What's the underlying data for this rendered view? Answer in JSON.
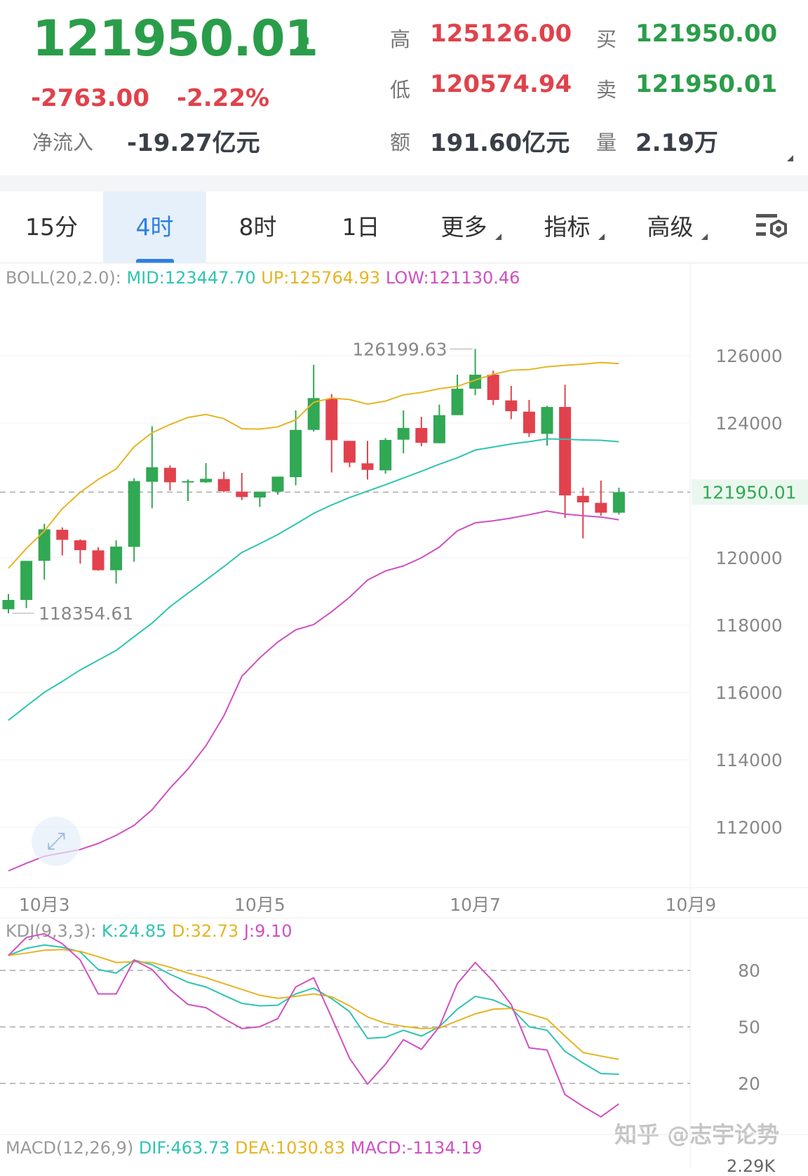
{
  "header": {
    "last_price": "121950.01",
    "trend_icon": "arrow-up-right-icon",
    "change": "-2763.00",
    "change_pct": "-2.22%",
    "net_inflow_label": "净流入",
    "net_inflow_value": "-19.27亿元",
    "stats": [
      {
        "label": "高",
        "value": "125126.00",
        "color": "red"
      },
      {
        "label": "买",
        "value": "121950.00",
        "color": "green"
      },
      {
        "label": "低",
        "value": "120574.94",
        "color": "red"
      },
      {
        "label": "卖",
        "value": "121950.01",
        "color": "green"
      },
      {
        "label": "额",
        "value": "191.60亿元",
        "color": "dark"
      },
      {
        "label": "量",
        "value": "2.19万",
        "color": "dark"
      }
    ]
  },
  "tabs": [
    {
      "label": "15分"
    },
    {
      "label": "4时",
      "selected": true
    },
    {
      "label": "8时"
    },
    {
      "label": "1日"
    },
    {
      "label": "更多",
      "dropdown": true
    },
    {
      "label": "指标",
      "dropdown": true
    },
    {
      "label": "高级",
      "dropdown": true
    }
  ],
  "settings_icon": "chart-settings-icon",
  "colors": {
    "up": "#31a853",
    "down": "#e2424d",
    "mid": "#2ec4b0",
    "upper": "#e6b422",
    "lower": "#d04fc2"
  },
  "boll_legend": {
    "name": "BOLL(20,2.0):",
    "mid": "MID:123447.70",
    "up": "UP:125764.93",
    "low": "LOW:121130.46"
  },
  "kdj_legend": {
    "name": "KDJ(9,3,3):",
    "k": "K:24.85",
    "d": "D:32.73",
    "j": "J:9.10"
  },
  "macd_legend": {
    "name": "MACD(12,26,9)",
    "dif": "DIF:463.73",
    "dea": "DEA:1030.83",
    "macd": "MACD:-1134.19"
  },
  "macd_axis_label": "2.29K",
  "watermark": "知乎 @志宇论势",
  "chart_data": [
    {
      "type": "candlestick",
      "interval": "4时",
      "yticks": [
        112000,
        114000,
        116000,
        118000,
        120000,
        124000,
        126000
      ],
      "ylim": [
        110500,
        127000
      ],
      "xticks": [
        {
          "label": "10月3",
          "index": 2
        },
        {
          "label": "10月5",
          "index": 14
        },
        {
          "label": "10月7",
          "index": 26
        },
        {
          "label": "10月9",
          "index": 38
        }
      ],
      "current_price_label": "121950.01",
      "current_price": 121950.01,
      "max_label": "126199.63",
      "max_index": 26,
      "min_label": "118354.61",
      "min_index": 0,
      "open": [
        118473,
        118750,
        119910,
        120833,
        120521,
        120222,
        119632,
        120326,
        122257,
        122674,
        122243,
        122243,
        122340,
        121965,
        121791,
        121965,
        122396,
        123799,
        124722,
        123472,
        122806,
        122597,
        123507,
        123854,
        123403,
        124236,
        125021,
        125437,
        124674,
        124340,
        123681,
        124479,
        121840,
        121632,
        121340
      ],
      "close": [
        118750,
        119910,
        120847,
        120535,
        120229,
        119632,
        120333,
        122278,
        122688,
        122243,
        122278,
        122347,
        121979,
        121805,
        121965,
        122410,
        123799,
        124743,
        123493,
        122826,
        122611,
        123500,
        123857,
        123417,
        124236,
        125021,
        125437,
        124687,
        124354,
        123701,
        124479,
        121854,
        121646,
        121340,
        121950
      ],
      "high": [
        118924,
        119910,
        121007,
        120903,
        120549,
        120313,
        120521,
        122361,
        123910,
        122743,
        122326,
        122813,
        122556,
        122521,
        121965,
        122410,
        124375,
        125729,
        124861,
        123472,
        123472,
        123556,
        124375,
        124187,
        124549,
        125437,
        126199.63,
        125556,
        125104,
        124687,
        124514,
        125139,
        122083,
        122292,
        122083
      ],
      "low": [
        118354.61,
        118507,
        119354,
        120070,
        119827,
        119618,
        119236,
        119882,
        121472,
        121999,
        121688,
        122222,
        121944,
        121715,
        121514,
        121875,
        122153,
        123750,
        122535,
        122694,
        122326,
        122500,
        123104,
        123313,
        123403,
        124236,
        124826,
        124535,
        124118,
        123590,
        123333,
        121181,
        120574.94,
        121250,
        121285
      ],
      "boll_up": [
        119688,
        120278,
        120799,
        121458,
        121944,
        122326,
        122639,
        123299,
        123715,
        123958,
        124167,
        124257,
        124132,
        123833,
        123820,
        123889,
        124097,
        124618,
        124743,
        124701,
        124562,
        124653,
        124840,
        124910,
        125021,
        125090,
        125278,
        125451,
        125569,
        125590,
        125673,
        125715,
        125750,
        125799,
        125765
      ],
      "boll_mid": [
        115176,
        115596,
        116007,
        116330,
        116670,
        116960,
        117250,
        117660,
        118060,
        118550,
        118950,
        119340,
        119740,
        120160,
        120420,
        120690,
        121000,
        121320,
        121570,
        121790,
        121980,
        122170,
        122370,
        122570,
        122780,
        122970,
        123200,
        123290,
        123380,
        123450,
        123530,
        123520,
        123500,
        123490,
        123448
      ],
      "boll_low": [
        110706,
        110930,
        111140,
        111240,
        111340,
        111520,
        111760,
        112056,
        112520,
        113160,
        113730,
        114420,
        115309,
        116480,
        117030,
        117500,
        117860,
        118020,
        118400,
        118830,
        119340,
        119610,
        119760,
        120000,
        120320,
        120800,
        121040,
        121100,
        121180,
        121280,
        121390,
        121300,
        121250,
        121210,
        121130
      ]
    },
    {
      "type": "line",
      "title": "KDJ(9,3,3)",
      "yticks": [
        20,
        50,
        80
      ],
      "series": [
        {
          "name": "K",
          "values": [
            87.9,
            91.7,
            93.5,
            92.3,
            89.8,
            80.5,
            78.6,
            85.5,
            83,
            78,
            73.7,
            71.2,
            66.8,
            62.5,
            61.2,
            61.5,
            67.5,
            70.6,
            65,
            58.1,
            43.9,
            44.5,
            48.2,
            45.1,
            50.1,
            59.4,
            66.2,
            64.3,
            60,
            50.1,
            48.2,
            37,
            30.8,
            25.2,
            24.85
          ]
        },
        {
          "name": "D",
          "values": [
            87.9,
            89.2,
            90.7,
            91.1,
            90.1,
            87.3,
            84.2,
            84.6,
            84.2,
            81.7,
            78.6,
            76.1,
            73,
            69.9,
            66.8,
            65.2,
            66.2,
            67.5,
            66,
            61.2,
            55.3,
            51.9,
            50.3,
            49.1,
            49.4,
            53.2,
            56.9,
            59.4,
            59.8,
            56.9,
            54.1,
            45.1,
            36.4,
            34.5,
            32.73
          ]
        },
        {
          "name": "J",
          "values": [
            87.9,
            97.5,
            99.5,
            94.2,
            85.5,
            67.5,
            67.5,
            85.5,
            80.5,
            69.9,
            61.9,
            60.2,
            54.4,
            49.1,
            50.1,
            54.4,
            71.2,
            76.1,
            55,
            33.3,
            19.6,
            30.2,
            43.2,
            38.1,
            50.1,
            73,
            84.2,
            74.2,
            61.9,
            38.9,
            37.7,
            14,
            7.8,
            2.2,
            9.1
          ]
        }
      ]
    }
  ]
}
